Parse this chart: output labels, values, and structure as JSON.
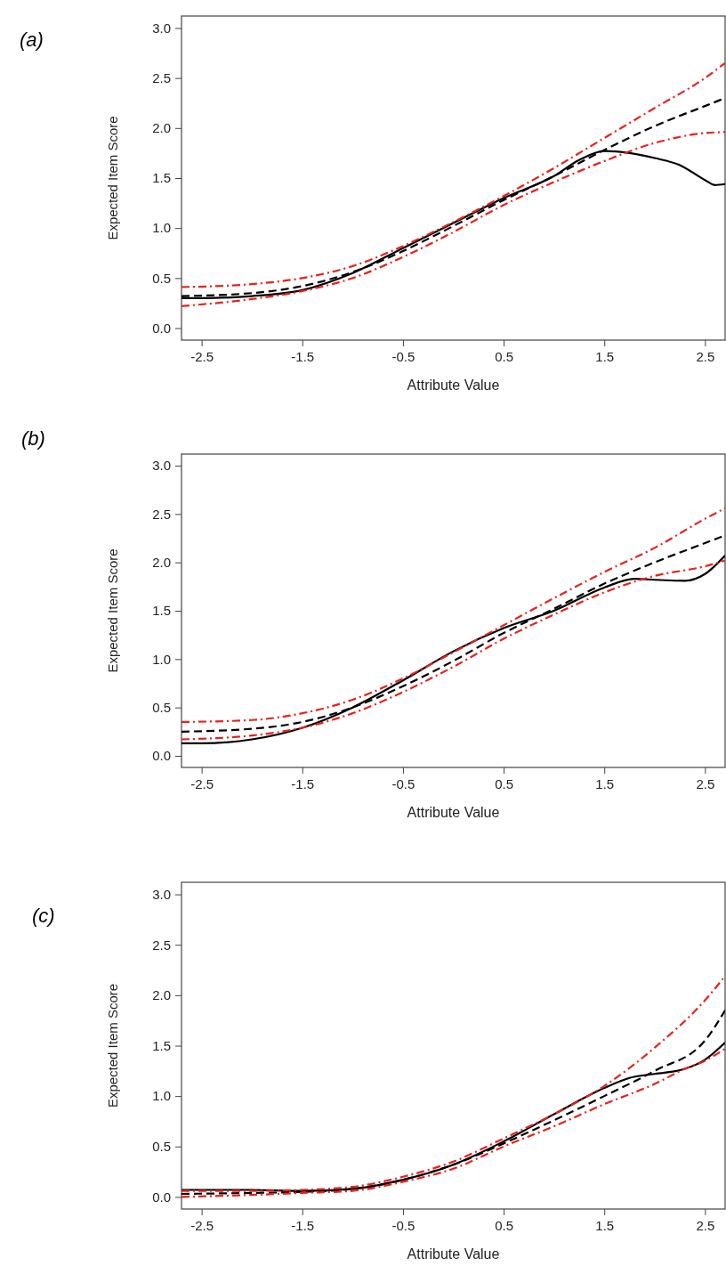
{
  "chart_data": [
    {
      "type": "line",
      "title": "(a)",
      "xlabel": "Attribute Value",
      "ylabel": "Expected Item Score",
      "xlim": [
        -2.7,
        2.7
      ],
      "ylim": [
        -0.12,
        3.12
      ],
      "xticks": [
        -2.5,
        -1.5,
        -0.5,
        0.5,
        1.5,
        2.5
      ],
      "yticks": [
        {
          "value": 0,
          "label": "0.0"
        },
        0.5,
        {
          "value": 1,
          "label": "1.0"
        },
        1.5,
        {
          "value": 2,
          "label": "2.0"
        },
        2.5,
        {
          "value": 3,
          "label": "3.0"
        }
      ],
      "grid": false,
      "marker": "none",
      "series": [
        {
          "color": "#000000",
          "line_style": "solid",
          "x": [
            -2.7,
            -2.5,
            -2,
            -1.5,
            -1,
            -0.5,
            0,
            0.5,
            1,
            1.25,
            1.5,
            1.75,
            2,
            2.25,
            2.5,
            2.6,
            2.7
          ],
          "values": [
            0.3,
            0.3,
            0.32,
            0.38,
            0.55,
            0.8,
            1.05,
            1.3,
            1.52,
            1.68,
            1.77,
            1.75,
            1.7,
            1.63,
            1.48,
            1.43,
            1.44
          ]
        },
        {
          "color": "#000000",
          "line_style": "dashed",
          "x": [
            -2.7,
            -2,
            -1.5,
            -1,
            -0.5,
            0,
            0.5,
            1,
            1.5,
            2,
            2.5,
            2.7
          ],
          "values": [
            0.32,
            0.35,
            0.42,
            0.56,
            0.77,
            1.02,
            1.28,
            1.52,
            1.78,
            2.02,
            2.22,
            2.3
          ]
        },
        {
          "color": "#e8211d",
          "line_style": "dashdot",
          "x": [
            -2.7,
            -2,
            -1.5,
            -1,
            -0.5,
            0,
            0.5,
            1,
            1.5,
            2,
            2.5,
            2.7
          ],
          "values": [
            0.41,
            0.44,
            0.5,
            0.62,
            0.82,
            1.06,
            1.32,
            1.6,
            1.9,
            2.2,
            2.5,
            2.65
          ]
        },
        {
          "color": "#e8211d",
          "line_style": "dashdot",
          "x": [
            -2.7,
            -2,
            -1.5,
            -1,
            -0.5,
            0,
            0.5,
            1,
            1.5,
            2,
            2.5,
            2.7
          ],
          "values": [
            0.22,
            0.29,
            0.37,
            0.5,
            0.71,
            0.96,
            1.23,
            1.46,
            1.67,
            1.85,
            1.95,
            1.96
          ]
        }
      ]
    },
    {
      "type": "line",
      "title": "(b)",
      "xlabel": "Attribute Value",
      "ylabel": "Expected Item Score",
      "xlim": [
        -2.7,
        2.7
      ],
      "ylim": [
        -0.12,
        3.12
      ],
      "xticks": [
        -2.5,
        -1.5,
        -0.5,
        0.5,
        1.5,
        2.5
      ],
      "yticks": [
        {
          "value": 0,
          "label": "0.0"
        },
        0.5,
        {
          "value": 1,
          "label": "1.0"
        },
        1.5,
        {
          "value": 2,
          "label": "2.0"
        },
        2.5,
        {
          "value": 3,
          "label": "3.0"
        }
      ],
      "grid": false,
      "marker": "none",
      "series": [
        {
          "color": "#000000",
          "line_style": "solid",
          "x": [
            -2.7,
            -2.5,
            -2,
            -1.5,
            -1,
            -0.5,
            0,
            0.5,
            1,
            1.5,
            1.8,
            2,
            2.3,
            2.5,
            2.7
          ],
          "values": [
            0.13,
            0.13,
            0.17,
            0.29,
            0.5,
            0.78,
            1.08,
            1.32,
            1.5,
            1.74,
            1.83,
            1.82,
            1.81,
            1.88,
            2.07
          ]
        },
        {
          "color": "#000000",
          "line_style": "dashed",
          "x": [
            -2.7,
            -2,
            -1.5,
            -1,
            -0.5,
            0,
            0.5,
            1,
            1.5,
            2,
            2.5,
            2.7
          ],
          "values": [
            0.25,
            0.28,
            0.35,
            0.5,
            0.72,
            0.98,
            1.27,
            1.52,
            1.78,
            2.0,
            2.2,
            2.28
          ]
        },
        {
          "color": "#e8211d",
          "line_style": "dashdot",
          "x": [
            -2.7,
            -2,
            -1.5,
            -1,
            -0.5,
            0,
            0.5,
            1,
            1.5,
            2,
            2.5,
            2.7
          ],
          "values": [
            0.35,
            0.37,
            0.44,
            0.58,
            0.8,
            1.07,
            1.35,
            1.63,
            1.9,
            2.15,
            2.45,
            2.56
          ]
        },
        {
          "color": "#e8211d",
          "line_style": "dashdot",
          "x": [
            -2.7,
            -2,
            -1.5,
            -1,
            -0.5,
            0,
            0.5,
            1,
            1.5,
            2,
            2.5,
            2.7
          ],
          "values": [
            0.17,
            0.21,
            0.29,
            0.44,
            0.66,
            0.92,
            1.21,
            1.46,
            1.69,
            1.86,
            1.96,
            2.02
          ]
        }
      ]
    },
    {
      "type": "line",
      "title": "(c)",
      "xlabel": "Attribute Value",
      "ylabel": "Expected Item Score",
      "xlim": [
        -2.7,
        2.7
      ],
      "ylim": [
        -0.12,
        3.12
      ],
      "xticks": [
        -2.5,
        -1.5,
        -0.5,
        0.5,
        1.5,
        2.5
      ],
      "yticks": [
        {
          "value": 0,
          "label": "0.0"
        },
        0.5,
        {
          "value": 1,
          "label": "1.0"
        },
        1.5,
        {
          "value": 2,
          "label": "2.0"
        },
        2.5,
        {
          "value": 3,
          "label": "3.0"
        }
      ],
      "grid": false,
      "marker": "none",
      "series": [
        {
          "color": "#000000",
          "line_style": "solid",
          "x": [
            -2.7,
            -2,
            -1.5,
            -1,
            -0.5,
            0,
            0.5,
            1,
            1.5,
            1.75,
            2,
            2.3,
            2.5,
            2.7
          ],
          "values": [
            0.07,
            0.07,
            0.06,
            0.08,
            0.17,
            0.32,
            0.55,
            0.82,
            1.08,
            1.18,
            1.22,
            1.27,
            1.36,
            1.53
          ]
        },
        {
          "color": "#000000",
          "line_style": "dashed",
          "x": [
            -2.7,
            -2,
            -1.5,
            -1,
            -0.5,
            0,
            0.5,
            1,
            1.5,
            2,
            2.5,
            2.7
          ],
          "values": [
            0.03,
            0.04,
            0.05,
            0.08,
            0.17,
            0.32,
            0.53,
            0.76,
            1.0,
            1.25,
            1.55,
            1.85
          ]
        },
        {
          "color": "#e8211d",
          "line_style": "dashdot",
          "x": [
            -2.7,
            -2,
            -1.5,
            -1,
            -0.5,
            0,
            0.5,
            1,
            1.5,
            2,
            2.5,
            2.7
          ],
          "values": [
            0.06,
            0.06,
            0.07,
            0.1,
            0.2,
            0.35,
            0.58,
            0.82,
            1.1,
            1.48,
            1.95,
            2.19
          ]
        },
        {
          "color": "#e8211d",
          "line_style": "dashdot",
          "x": [
            -2.7,
            -2,
            -1.5,
            -1,
            -0.5,
            0,
            0.5,
            1,
            1.5,
            2,
            2.3,
            2.5,
            2.7
          ],
          "values": [
            0.0,
            0.02,
            0.04,
            0.06,
            0.15,
            0.28,
            0.5,
            0.7,
            0.92,
            1.12,
            1.27,
            1.35,
            1.47
          ]
        }
      ]
    }
  ]
}
